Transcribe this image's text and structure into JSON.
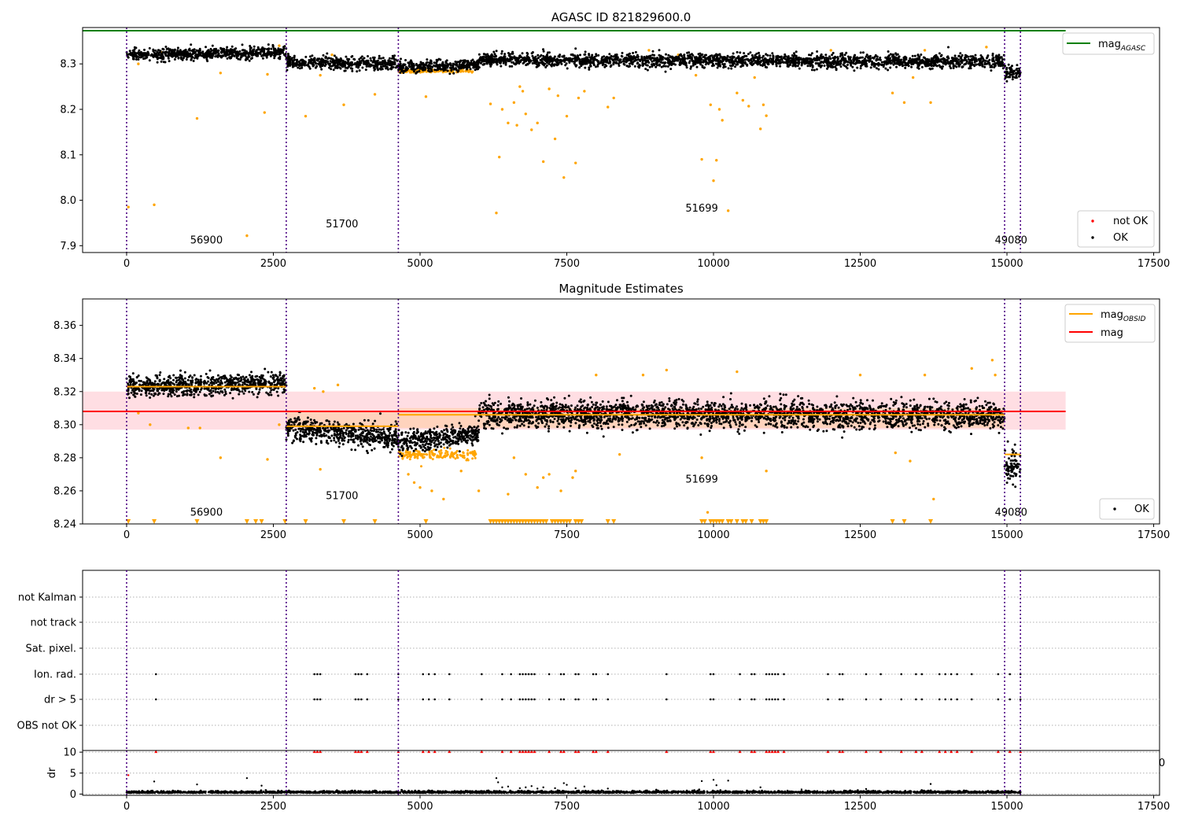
{
  "chart_data": [
    {
      "type": "scatter",
      "title": "AGASC ID 821829600.0",
      "xlim": [
        -750,
        17600
      ],
      "ylim": [
        7.885,
        8.38
      ],
      "xticks": [
        0,
        2500,
        5000,
        7500,
        10000,
        12500,
        15000,
        17500
      ],
      "xtick_labels": [
        "0",
        "2500",
        "5000",
        "7500",
        "10000",
        "12500",
        "15000",
        "17500"
      ],
      "yticks": [
        7.9,
        8.0,
        8.1,
        8.2,
        8.3
      ],
      "ytick_labels": [
        "7.9",
        "8.0",
        "8.1",
        "8.2",
        "8.3"
      ],
      "vlines": [
        0,
        2720,
        4630,
        14960,
        15230
      ],
      "obsid_labels": [
        {
          "x": 1360,
          "y": 7.905,
          "text": "56900"
        },
        {
          "x": 3670,
          "y": 7.94,
          "text": "51700"
        },
        {
          "x": 9800,
          "y": 7.975,
          "text": "51699"
        },
        {
          "x": 15070,
          "y": 7.905,
          "text": "49080"
        }
      ],
      "mag_agasc": 8.373,
      "mag_agasc_xrange": [
        -750,
        16000
      ],
      "segments": [
        {
          "x0": 0,
          "x1": 2720,
          "center": 8.322,
          "spread": 0.014,
          "slope": 0.006,
          "y_at_end": 8.328
        },
        {
          "x0": 2720,
          "x1": 4630,
          "center": 8.302,
          "spread": 0.016,
          "slope": -0.006,
          "y_at_end": 8.296
        },
        {
          "x0": 4630,
          "x1": 6000,
          "center": 8.295,
          "spread": 0.014,
          "slope": 0.006,
          "y_at_end": 8.301
        },
        {
          "x0": 6000,
          "x1": 14960,
          "center": 8.307,
          "spread": 0.016,
          "slope": -0.003,
          "y_at_end": 8.304
        },
        {
          "x0": 14960,
          "x1": 15230,
          "center": 8.282,
          "spread": 0.018,
          "slope": 0.0,
          "y_at_end": 8.282
        }
      ],
      "outliers_orange": [
        [
          30,
          7.985
        ],
        [
          470,
          7.99
        ],
        [
          2050,
          7.922
        ],
        [
          1200,
          8.18
        ],
        [
          2350,
          8.193
        ],
        [
          3050,
          8.185
        ],
        [
          3700,
          8.21
        ],
        [
          4230,
          8.233
        ],
        [
          5100,
          8.228
        ],
        [
          6300,
          7.972
        ],
        [
          6350,
          8.095
        ],
        [
          6200,
          8.212
        ],
        [
          6400,
          8.2
        ],
        [
          6500,
          8.17
        ],
        [
          6600,
          8.215
        ],
        [
          6650,
          8.165
        ],
        [
          6800,
          8.19
        ],
        [
          6900,
          8.155
        ],
        [
          7000,
          8.17
        ],
        [
          7100,
          8.085
        ],
        [
          7300,
          8.135
        ],
        [
          7450,
          8.05
        ],
        [
          7500,
          8.185
        ],
        [
          7650,
          8.082
        ],
        [
          7700,
          8.225
        ],
        [
          7800,
          8.24
        ],
        [
          8200,
          8.205
        ],
        [
          8300,
          8.225
        ],
        [
          9800,
          8.09
        ],
        [
          10000,
          8.043
        ],
        [
          10050,
          8.088
        ],
        [
          10100,
          8.2
        ],
        [
          10150,
          8.176
        ],
        [
          10250,
          7.977
        ],
        [
          10400,
          8.236
        ],
        [
          10600,
          8.207
        ],
        [
          10800,
          8.157
        ],
        [
          10850,
          8.21
        ],
        [
          10900,
          8.186
        ],
        [
          13050,
          8.236
        ],
        [
          13250,
          8.215
        ],
        [
          13700,
          8.215
        ],
        [
          9950,
          8.21
        ],
        [
          10500,
          8.22
        ],
        [
          6700,
          8.25
        ],
        [
          6750,
          8.24
        ],
        [
          7200,
          8.245
        ],
        [
          7350,
          8.23
        ],
        [
          8900,
          8.33
        ],
        [
          9400,
          8.32
        ],
        [
          12000,
          8.33
        ],
        [
          13600,
          8.33
        ],
        [
          14650,
          8.337
        ],
        [
          2600,
          8.34
        ],
        [
          600,
          8.325
        ],
        [
          1600,
          8.28
        ],
        [
          2400,
          8.277
        ],
        [
          200,
          8.3
        ],
        [
          3300,
          8.275
        ],
        [
          3500,
          8.32
        ],
        [
          9700,
          8.275
        ],
        [
          10700,
          8.27
        ],
        [
          13400,
          8.27
        ]
      ],
      "orange_band": {
        "x0": 4630,
        "x1": 5900,
        "y": 8.284,
        "spread": 0.004
      },
      "legends": [
        {
          "position": "upper-right",
          "entries": [
            {
              "label": "mag",
              "subscript": "AGASC"
            }
          ]
        },
        {
          "position": "lower-right",
          "entries": [
            {
              "label": "not OK"
            },
            {
              "label": "OK"
            }
          ]
        }
      ]
    },
    {
      "type": "scatter",
      "title": "Magnitude Estimates",
      "xlim": [
        -750,
        17600
      ],
      "ylim": [
        8.24,
        8.376
      ],
      "xticks": [
        0,
        2500,
        5000,
        7500,
        10000,
        12500,
        15000,
        17500
      ],
      "xtick_labels": [
        "0",
        "2500",
        "5000",
        "7500",
        "10000",
        "12500",
        "15000",
        "17500"
      ],
      "yticks": [
        8.24,
        8.26,
        8.28,
        8.3,
        8.32,
        8.34,
        8.36
      ],
      "ytick_labels": [
        "8.24",
        "8.26",
        "8.28",
        "8.30",
        "8.32",
        "8.34",
        "8.36"
      ],
      "vlines": [
        0,
        2720,
        4630,
        14960,
        15230
      ],
      "obsid_labels": [
        {
          "x": 1360,
          "y": 8.245,
          "text": "56900"
        },
        {
          "x": 3670,
          "y": 8.255,
          "text": "51700"
        },
        {
          "x": 9800,
          "y": 8.265,
          "text": "51699"
        },
        {
          "x": 15070,
          "y": 8.245,
          "text": "49080"
        }
      ],
      "mag": 8.308,
      "mag_band": [
        8.297,
        8.32
      ],
      "mag_xrange": [
        -750,
        16000
      ],
      "mag_obsid": [
        {
          "x0": 0,
          "x1": 2720,
          "y": 8.323
        },
        {
          "x0": 2720,
          "x1": 4630,
          "y": 8.299
        },
        {
          "x0": 4630,
          "x1": 14960,
          "y": 8.306
        },
        {
          "x0": 14960,
          "x1": 15230,
          "y": 8.282
        }
      ],
      "obsid_bands": [
        {
          "x0": 2720,
          "x1": 4630,
          "y0": 8.299,
          "y1": 8.308
        },
        {
          "x0": 4630,
          "x1": 14960,
          "y0": 8.298,
          "y1": 8.31
        }
      ],
      "segments": [
        {
          "x0": 0,
          "x1": 2720,
          "center": 8.324,
          "spread": 0.007,
          "slope": 0.002,
          "y_at_end": 8.326
        },
        {
          "x0": 2720,
          "x1": 4630,
          "center": 8.295,
          "spread": 0.008,
          "slope": -0.006,
          "y_at_end": 8.289
        },
        {
          "x0": 4630,
          "x1": 6000,
          "center": 8.292,
          "spread": 0.007,
          "slope": 0.006,
          "y_at_end": 8.298
        },
        {
          "x0": 6000,
          "x1": 14960,
          "center": 8.306,
          "spread": 0.009,
          "slope": -0.002,
          "y_at_end": 8.304
        },
        {
          "x0": 14960,
          "x1": 15230,
          "center": 8.275,
          "spread": 0.012,
          "slope": 0.0,
          "y_at_end": 8.275
        }
      ],
      "outliers_orange": [
        [
          200,
          8.307
        ],
        [
          400,
          8.3
        ],
        [
          1050,
          8.298
        ],
        [
          1250,
          8.298
        ],
        [
          1600,
          8.28
        ],
        [
          2400,
          8.279
        ],
        [
          2600,
          8.3
        ],
        [
          3300,
          8.273
        ],
        [
          3200,
          8.322
        ],
        [
          3350,
          8.32
        ],
        [
          3600,
          8.324
        ],
        [
          4800,
          8.27
        ],
        [
          4900,
          8.265
        ],
        [
          5000,
          8.262
        ],
        [
          5200,
          8.26
        ],
        [
          5400,
          8.255
        ],
        [
          5700,
          8.272
        ],
        [
          6000,
          8.26
        ],
        [
          6500,
          8.258
        ],
        [
          6600,
          8.28
        ],
        [
          6800,
          8.27
        ],
        [
          7000,
          8.262
        ],
        [
          7100,
          8.268
        ],
        [
          7200,
          8.27
        ],
        [
          7400,
          8.26
        ],
        [
          7600,
          8.268
        ],
        [
          7650,
          8.272
        ],
        [
          8400,
          8.282
        ],
        [
          8800,
          8.33
        ],
        [
          9200,
          8.333
        ],
        [
          9800,
          8.28
        ],
        [
          9900,
          8.247
        ],
        [
          10900,
          8.272
        ],
        [
          12500,
          8.33
        ],
        [
          13100,
          8.283
        ],
        [
          13350,
          8.278
        ],
        [
          13600,
          8.33
        ],
        [
          13750,
          8.255
        ],
        [
          14400,
          8.334
        ],
        [
          14750,
          8.339
        ],
        [
          14800,
          8.33
        ],
        [
          8000,
          8.33
        ],
        [
          10400,
          8.332
        ]
      ],
      "orange_band": {
        "x0": 4630,
        "x1": 5950,
        "y": 8.282,
        "spread": 0.003
      },
      "bottom_markers": [
        30,
        470,
        1200,
        2050,
        2200,
        2300,
        2700,
        3050,
        3700,
        4230,
        5100,
        6200,
        6250,
        6300,
        6350,
        6400,
        6450,
        6500,
        6550,
        6600,
        6650,
        6700,
        6750,
        6800,
        6850,
        6900,
        6950,
        7000,
        7050,
        7100,
        7150,
        7250,
        7300,
        7350,
        7400,
        7450,
        7500,
        7550,
        7650,
        7700,
        7750,
        8200,
        8300,
        9800,
        9850,
        9950,
        10000,
        10050,
        10100,
        10150,
        10250,
        10300,
        10400,
        10500,
        10550,
        10650,
        10800,
        10850,
        10900,
        13050,
        13250,
        13700
      ],
      "legends": [
        {
          "position": "upper-right",
          "entries": [
            {
              "label": "mag",
              "subscript": "OBSID"
            },
            {
              "label": "mag"
            }
          ]
        },
        {
          "position": "lower-right",
          "entries": [
            {
              "label": "OK"
            }
          ]
        }
      ]
    },
    {
      "type": "scatter",
      "title": "",
      "xlim": [
        -750,
        17600
      ],
      "categories": [
        "not Kalman",
        "not track",
        "Sat. pixel.",
        "Ion. rad.",
        "dr > 5",
        "OBS not OK"
      ],
      "vlines": [
        0,
        2720,
        4630,
        14960,
        15230
      ],
      "flag_events": [
        500,
        3200,
        3250,
        3300,
        3900,
        3950,
        4000,
        4100,
        4630,
        5050,
        5150,
        5250,
        5500,
        6050,
        6400,
        6550,
        6700,
        6750,
        6800,
        6850,
        6900,
        6950,
        7200,
        7400,
        7450,
        7650,
        7700,
        7950,
        8000,
        8200,
        9200,
        9950,
        10000,
        10450,
        10650,
        10700,
        10900,
        10950,
        11000,
        11050,
        11100,
        11200,
        11950,
        12150,
        12200,
        12600,
        12850,
        13200,
        13450,
        13550,
        13850,
        13950,
        14050,
        14150,
        14400,
        14850,
        15050,
        15230
      ],
      "flag_rows": [
        "Ion. rad.",
        "dr > 5"
      ],
      "corner_text": "0"
    },
    {
      "type": "scatter",
      "title": "",
      "ylabel": "dr",
      "xlim": [
        -750,
        17600
      ],
      "ylim": [
        -0.3,
        10.4
      ],
      "xticks": [
        0,
        2500,
        5000,
        7500,
        10000,
        12500,
        15000,
        17500
      ],
      "xtick_labels": [
        "0",
        "2500",
        "5000",
        "7500",
        "10000",
        "12500",
        "15000",
        "17500"
      ],
      "yticks": [
        0,
        5,
        10
      ],
      "ytick_labels": [
        "0",
        "5",
        "10"
      ],
      "vlines": [
        0,
        2720,
        4630,
        14960,
        15230
      ],
      "baseline": {
        "x0": 0,
        "x1": 15230,
        "center": 0.3,
        "spread": 0.4
      },
      "scattered_dr": [
        [
          30,
          4.5
        ],
        [
          470,
          3.0
        ],
        [
          1200,
          2.3
        ],
        [
          2050,
          3.8
        ],
        [
          2300,
          2.0
        ],
        [
          6300,
          3.8
        ],
        [
          6330,
          2.8
        ],
        [
          6400,
          1.6
        ],
        [
          6500,
          1.8
        ],
        [
          6700,
          1.4
        ],
        [
          6800,
          1.6
        ],
        [
          6900,
          1.9
        ],
        [
          7000,
          1.3
        ],
        [
          7100,
          1.6
        ],
        [
          7300,
          1.4
        ],
        [
          7450,
          2.6
        ],
        [
          7500,
          2.2
        ],
        [
          7650,
          1.4
        ],
        [
          7800,
          1.8
        ],
        [
          8200,
          1.3
        ],
        [
          9800,
          3.1
        ],
        [
          10000,
          3.4
        ],
        [
          10050,
          2.1
        ],
        [
          10250,
          3.2
        ],
        [
          10800,
          1.6
        ],
        [
          13700,
          2.4
        ],
        [
          12600,
          1.2
        ],
        [
          11500,
          1.1
        ]
      ],
      "clipped_markers": [
        500,
        3200,
        3250,
        3300,
        3900,
        3950,
        4000,
        4100,
        4630,
        5050,
        5150,
        5250,
        5500,
        6050,
        6400,
        6550,
        6700,
        6750,
        6800,
        6850,
        6900,
        6950,
        7200,
        7400,
        7450,
        7650,
        7700,
        7950,
        8000,
        8200,
        9200,
        9950,
        10000,
        10450,
        10650,
        10700,
        10900,
        10950,
        11000,
        11050,
        11100,
        11200,
        11950,
        12150,
        12200,
        12600,
        12850,
        13200,
        13450,
        13550,
        13850,
        13950,
        14050,
        14150,
        14400,
        14850,
        15050,
        15230
      ]
    }
  ]
}
